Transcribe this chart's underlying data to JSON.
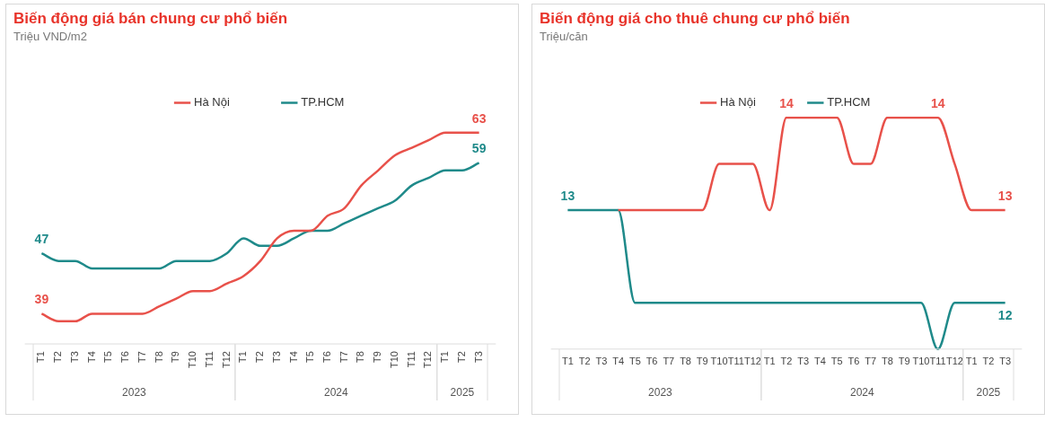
{
  "chart_data": [
    {
      "type": "line",
      "title": "Biến động giá bán chung cư phổ biến",
      "subtitle": "Triệu VND/m2",
      "categories": [
        "T1",
        "T2",
        "T3",
        "T4",
        "T5",
        "T6",
        "T7",
        "T8",
        "T9",
        "T10",
        "T11",
        "T12",
        "T1",
        "T2",
        "T3",
        "T4",
        "T5",
        "T6",
        "T7",
        "T8",
        "T9",
        "T10",
        "T11",
        "T12",
        "T1",
        "T2",
        "T3"
      ],
      "annotations": [
        "2023",
        "2024",
        "2025"
      ],
      "series": [
        {
          "name": "Hà Nội",
          "color": "#e8514a",
          "values": [
            39,
            38,
            38,
            39,
            39,
            39,
            39,
            40,
            41,
            42,
            42,
            43,
            44,
            46,
            49,
            50,
            50,
            52,
            53,
            56,
            58,
            60,
            61,
            62,
            63,
            63,
            63
          ],
          "value_labels": [
            "39",
            null,
            null,
            null,
            null,
            null,
            null,
            null,
            null,
            null,
            null,
            null,
            null,
            null,
            null,
            null,
            null,
            null,
            null,
            null,
            null,
            null,
            null,
            null,
            null,
            null,
            "63"
          ]
        },
        {
          "name": "TP.HCM",
          "color": "#1f8a8a",
          "values": [
            47,
            46,
            46,
            45,
            45,
            45,
            45,
            45,
            46,
            46,
            46,
            47,
            49,
            48,
            48,
            49,
            50,
            50,
            51,
            52,
            53,
            54,
            56,
            57,
            58,
            58,
            59
          ],
          "value_labels": [
            "47",
            null,
            null,
            null,
            null,
            null,
            null,
            null,
            null,
            null,
            null,
            null,
            null,
            null,
            null,
            null,
            null,
            null,
            null,
            null,
            null,
            null,
            null,
            null,
            null,
            null,
            "59"
          ]
        }
      ],
      "tick_labels": "x",
      "grid": false,
      "legend": "top",
      "marker": "none",
      "line_style": "solid"
    },
    {
      "type": "line",
      "title": "Biến động giá cho thuê chung cư phổ biến",
      "subtitle": "Triệu/căn",
      "categories": [
        "T1",
        "T2",
        "T3",
        "T4",
        "T5",
        "T6",
        "T7",
        "T8",
        "T9",
        "T10",
        "T11",
        "T12",
        "T1",
        "T2",
        "T3",
        "T4",
        "T5",
        "T6",
        "T7",
        "T8",
        "T9",
        "T10",
        "T11",
        "T12",
        "T1",
        "T2",
        "T3"
      ],
      "annotations": [
        "2023",
        "2024",
        "2025"
      ],
      "series": [
        {
          "name": "Hà Nội",
          "color": "#e8514a",
          "values": [
            null,
            null,
            null,
            13,
            13,
            13,
            13,
            13,
            13,
            13.5,
            13.5,
            13.5,
            13,
            14,
            14,
            14,
            14,
            13.5,
            13.5,
            14,
            14,
            14,
            14,
            13.5,
            13,
            13,
            13
          ],
          "value_labels": [
            null,
            null,
            null,
            null,
            null,
            null,
            null,
            null,
            null,
            null,
            null,
            null,
            null,
            "14",
            null,
            null,
            null,
            null,
            null,
            null,
            null,
            null,
            "14",
            null,
            null,
            null,
            "13"
          ]
        },
        {
          "name": "TP.HCM",
          "color": "#1f8a8a",
          "values": [
            13,
            13,
            13,
            13,
            12,
            12,
            12,
            12,
            12,
            12,
            12,
            12,
            12,
            12,
            12,
            12,
            12,
            12,
            12,
            12,
            12,
            12,
            11.5,
            12,
            12,
            12,
            12
          ],
          "value_labels": [
            "13",
            null,
            null,
            null,
            null,
            null,
            null,
            null,
            null,
            null,
            null,
            null,
            null,
            null,
            null,
            null,
            null,
            null,
            null,
            null,
            null,
            null,
            null,
            null,
            null,
            null,
            "12"
          ]
        }
      ],
      "tick_labels": "x",
      "grid": false,
      "legend": "top",
      "marker": "none",
      "line_style": "solid"
    }
  ]
}
